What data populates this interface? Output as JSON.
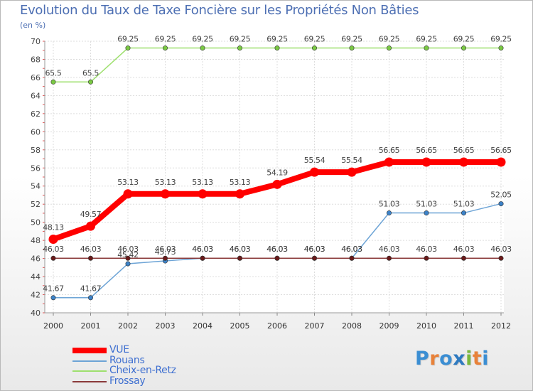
{
  "header": {
    "title": "Evolution du Taux de Taxe Foncière sur les Propriétés Non Bâties",
    "subtitle": "(en %)"
  },
  "logo": {
    "text": "Proxiti",
    "letters": [
      "P",
      "r",
      "o",
      "x",
      "i",
      "t",
      "i"
    ],
    "colors": [
      "#3b8ed3",
      "#e8823a",
      "#3b8ed3",
      "#2e7ac0",
      "#7ab83d",
      "#e8823a",
      "#3b8ed3"
    ]
  },
  "chart_data": {
    "type": "line",
    "title": "Evolution du Taux de Taxe Foncière sur les Propriétés Non Bâties",
    "ylabel": "(en %)",
    "xlabel": "",
    "ylim": [
      40,
      70
    ],
    "y_major_ticks": [
      40,
      42,
      44,
      46,
      48,
      50,
      52,
      54,
      56,
      58,
      60,
      62,
      64,
      66,
      68,
      70
    ],
    "grid": true,
    "legend_position": "bottom-left",
    "categories": [
      "2000",
      "2001",
      "2002",
      "2003",
      "2004",
      "2005",
      "2006",
      "2007",
      "2008",
      "2009",
      "2010",
      "2011",
      "2012"
    ],
    "series": [
      {
        "name": "VUE",
        "color": "#ff0000",
        "emphasis": true,
        "values": [
          48.13,
          49.57,
          53.13,
          53.13,
          53.13,
          53.13,
          54.19,
          55.54,
          55.54,
          56.65,
          56.65,
          56.65,
          56.65
        ],
        "labels": [
          "48.13",
          "49.57",
          "53.13",
          "53.13",
          "53.13",
          "53.13",
          "54.19",
          "55.54",
          "55.54",
          "56.65",
          "56.65",
          "56.65",
          "56.65"
        ]
      },
      {
        "name": "Rouans",
        "color": "#6da4d6",
        "marker_color": "#3c82c8",
        "values": [
          41.67,
          41.67,
          45.42,
          45.73,
          46.03,
          46.03,
          46.03,
          46.03,
          46.03,
          51.03,
          51.03,
          51.03,
          52.05
        ],
        "labels": [
          "41.67",
          "41.67",
          "45.42",
          "45.73",
          "46.03",
          "46.03",
          "46.03",
          "46.03",
          "46.03",
          "51.03",
          "51.03",
          "51.03",
          "52.05"
        ]
      },
      {
        "name": "Cheix-en-Retz",
        "color": "#9ee06e",
        "marker_color": "#7ac943",
        "values": [
          65.5,
          65.5,
          69.25,
          69.25,
          69.25,
          69.25,
          69.25,
          69.25,
          69.25,
          69.25,
          69.25,
          69.25,
          69.25
        ],
        "labels": [
          "65.5",
          "65.5",
          "69.25",
          "69.25",
          "69.25",
          "69.25",
          "69.25",
          "69.25",
          "69.25",
          "69.25",
          "69.25",
          "69.25",
          "69.25"
        ]
      },
      {
        "name": "Frossay",
        "color": "#8b3a3a",
        "marker_color": "#6b1a1a",
        "values": [
          46.03,
          46.03,
          46.03,
          46.03,
          46.03,
          46.03,
          46.03,
          46.03,
          46.03,
          46.03,
          46.03,
          46.03,
          46.03
        ],
        "labels": [
          "46.03",
          "46.03",
          "46.03",
          "46.03",
          "46.03",
          "46.03",
          "46.03",
          "46.03",
          "46.03",
          "46.03",
          "46.03",
          "46.03",
          "46.03"
        ]
      }
    ]
  }
}
